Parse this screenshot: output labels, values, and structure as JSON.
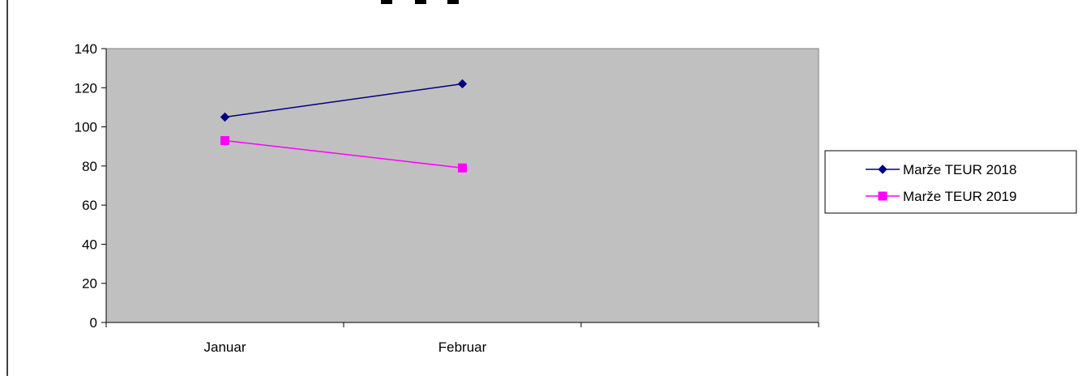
{
  "chart_data": {
    "type": "line",
    "title": "",
    "xlabel": "",
    "ylabel": "",
    "categories": [
      "Januar",
      "Februar",
      ""
    ],
    "ylim": [
      0,
      140
    ],
    "yticks": [
      0,
      20,
      40,
      60,
      80,
      100,
      120,
      140
    ],
    "grid": false,
    "legend_position": "right",
    "plot_background": "#c0c0c0",
    "series": [
      {
        "name": "Marže TEUR 2018",
        "values": [
          105,
          122,
          null
        ],
        "color": "#000080",
        "marker": "diamond"
      },
      {
        "name": "Marže TEUR 2019",
        "values": [
          93,
          79,
          null
        ],
        "color": "#ff00ff",
        "marker": "square"
      }
    ]
  }
}
